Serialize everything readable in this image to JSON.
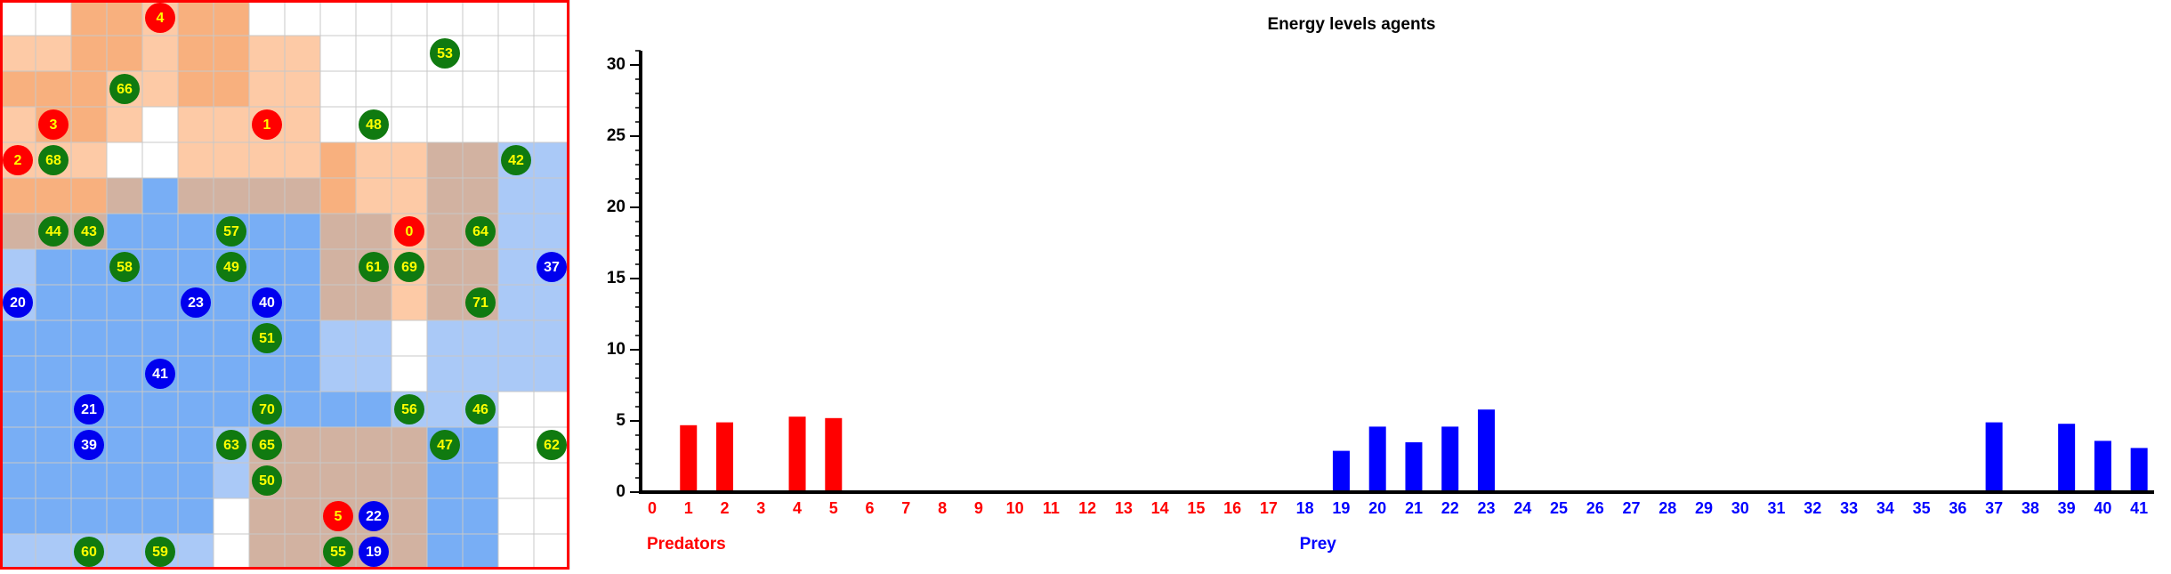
{
  "grid": {
    "agents": [
      {
        "label": "4",
        "color": "red"
      },
      {
        "label": "53",
        "color": "green"
      },
      {
        "label": "66",
        "color": "green"
      },
      {
        "label": "3",
        "color": "red"
      },
      {
        "label": "1",
        "color": "red"
      },
      {
        "label": "48",
        "color": "green"
      },
      {
        "label": "2",
        "color": "red"
      },
      {
        "label": "68",
        "color": "green"
      },
      {
        "label": "42",
        "color": "green"
      },
      {
        "label": "44",
        "color": "green"
      },
      {
        "label": "43",
        "color": "green"
      },
      {
        "label": "57",
        "color": "green"
      },
      {
        "label": "0",
        "color": "red"
      },
      {
        "label": "64",
        "color": "green"
      },
      {
        "label": "58",
        "color": "green"
      },
      {
        "label": "49",
        "color": "green"
      },
      {
        "label": "61",
        "color": "green"
      },
      {
        "label": "69",
        "color": "green"
      },
      {
        "label": "37",
        "color": "blue"
      },
      {
        "label": "20",
        "color": "blue"
      },
      {
        "label": "23",
        "color": "blue"
      },
      {
        "label": "40",
        "color": "blue"
      },
      {
        "label": "71",
        "color": "green"
      },
      {
        "label": "51",
        "color": "green"
      },
      {
        "label": "41",
        "color": "blue"
      },
      {
        "label": "21",
        "color": "blue"
      },
      {
        "label": "70",
        "color": "green"
      },
      {
        "label": "56",
        "color": "green"
      },
      {
        "label": "46",
        "color": "green"
      },
      {
        "label": "39",
        "color": "blue"
      },
      {
        "label": "63",
        "color": "green"
      },
      {
        "label": "65",
        "color": "green"
      },
      {
        "label": "47",
        "color": "green"
      },
      {
        "label": "62",
        "color": "green"
      },
      {
        "label": "50",
        "color": "green"
      },
      {
        "label": "5",
        "color": "red"
      },
      {
        "label": "22",
        "color": "blue"
      },
      {
        "label": "60",
        "color": "green"
      },
      {
        "label": "59",
        "color": "green"
      },
      {
        "label": "55",
        "color": "green"
      },
      {
        "label": "19",
        "color": "blue"
      }
    ]
  },
  "chart_data": {
    "type": "bar",
    "title": "Energy levels agents",
    "categories": [
      "0",
      "1",
      "2",
      "3",
      "4",
      "5",
      "6",
      "7",
      "8",
      "9",
      "10",
      "11",
      "12",
      "13",
      "14",
      "15",
      "16",
      "17",
      "18",
      "19",
      "20",
      "21",
      "22",
      "23",
      "24",
      "25",
      "26",
      "27",
      "28",
      "29",
      "30",
      "31",
      "32",
      "33",
      "34",
      "35",
      "36",
      "37",
      "38",
      "39",
      "40",
      "41"
    ],
    "series": [
      {
        "name": "Predators",
        "color": "#ff0000",
        "values": [
          0,
          4.7,
          4.9,
          0,
          5.3,
          5.2,
          0,
          0,
          0,
          0,
          0,
          0,
          0,
          0,
          0,
          0,
          0,
          0,
          null,
          null,
          null,
          null,
          null,
          null,
          null,
          null,
          null,
          null,
          null,
          null,
          null,
          null,
          null,
          null,
          null,
          null,
          null,
          null,
          null,
          null,
          null,
          null
        ]
      },
      {
        "name": "Prey",
        "color": "#0000ff",
        "values": [
          null,
          null,
          null,
          null,
          null,
          null,
          null,
          null,
          null,
          null,
          null,
          null,
          null,
          null,
          null,
          null,
          null,
          null,
          0,
          2.9,
          4.6,
          3.5,
          4.6,
          5.8,
          0,
          0,
          0,
          0,
          0,
          0,
          0,
          0,
          0,
          0,
          0,
          0,
          0,
          4.9,
          0,
          4.8,
          3.6,
          3.1
        ]
      }
    ],
    "ylim": [
      0,
      31
    ],
    "yticks": [
      0,
      5,
      10,
      15,
      20,
      25,
      30
    ]
  }
}
